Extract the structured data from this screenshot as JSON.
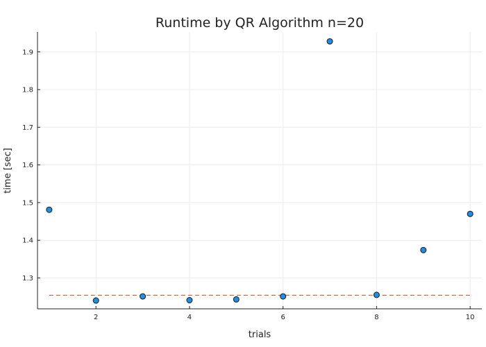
{
  "chart_data": {
    "type": "scatter",
    "title": "Runtime by QR Algorithm  n=20",
    "xlabel": "trials",
    "ylabel": "time [sec]",
    "xlim": [
      0.75,
      10.25
    ],
    "ylim": [
      1.218,
      1.953
    ],
    "xticks": [
      2,
      4,
      6,
      8,
      10
    ],
    "yticks": [
      1.3,
      1.4,
      1.5,
      1.6,
      1.7,
      1.8,
      1.9
    ],
    "grid": true,
    "series": [
      {
        "type": "scatter",
        "x": [
          1,
          2,
          3,
          4,
          5,
          6,
          7,
          8,
          9,
          10
        ],
        "y": [
          1.481,
          1.24,
          1.251,
          1.241,
          1.243,
          1.251,
          1.928,
          1.255,
          1.374,
          1.47
        ],
        "color": "#1f8fe6"
      },
      {
        "type": "line",
        "style": "dashed",
        "x": [
          1,
          10
        ],
        "y": [
          1.254,
          1.254
        ],
        "color": "#e4572e"
      }
    ]
  }
}
